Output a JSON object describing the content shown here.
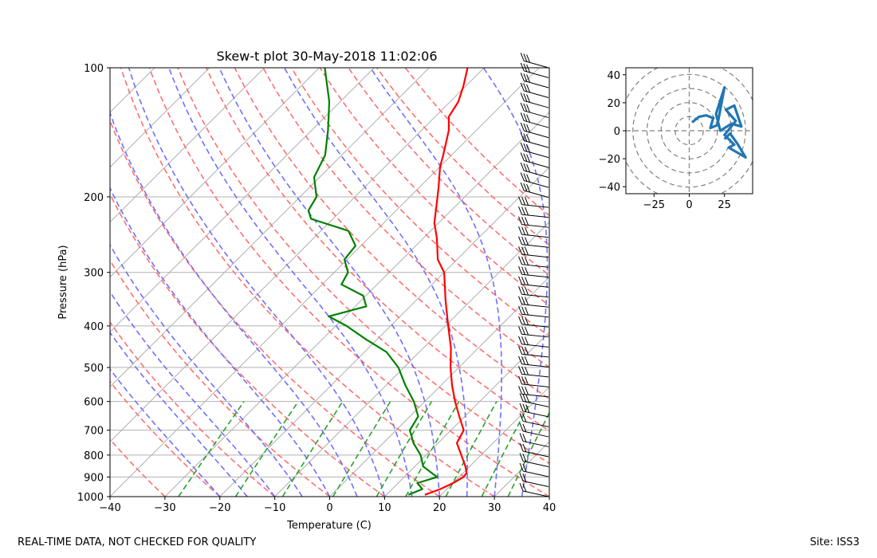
{
  "chart_data": [
    {
      "type": "skew-t",
      "title": "Skew-t plot 30-May-2018 11:02:06",
      "xlabel": "Temperature (C)",
      "ylabel": "Pressure (hPa)",
      "xlim": [
        -40,
        40
      ],
      "ylim_hpa": [
        1000,
        100
      ],
      "y_scale": "log",
      "x_ticks": [
        "−40",
        "−30",
        "−20",
        "−10",
        "0",
        "10",
        "20",
        "30",
        "40"
      ],
      "x_tick_values": [
        -40,
        -30,
        -20,
        -10,
        0,
        10,
        20,
        30,
        40
      ],
      "y_ticks": [
        "100",
        "200",
        "300",
        "400",
        "500",
        "600",
        "700",
        "800",
        "900",
        "1000"
      ],
      "y_tick_values": [
        100,
        200,
        300,
        400,
        500,
        600,
        700,
        800,
        900,
        1000
      ],
      "grid": true,
      "series": [
        {
          "name": "",
          "color": "#ff0000",
          "points": [
            {
              "p": 990,
              "t": 17.0
            },
            {
              "p": 960,
              "t": 18.8
            },
            {
              "p": 930,
              "t": 20.0
            },
            {
              "p": 900,
              "t": 20.8
            },
            {
              "p": 880,
              "t": 20.6
            },
            {
              "p": 850,
              "t": 19.2
            },
            {
              "p": 800,
              "t": 16.4
            },
            {
              "p": 750,
              "t": 13.4
            },
            {
              "p": 700,
              "t": 12.3
            },
            {
              "p": 650,
              "t": 9.0
            },
            {
              "p": 600,
              "t": 5.5
            },
            {
              "p": 550,
              "t": 2.0
            },
            {
              "p": 500,
              "t": -1.5
            },
            {
              "p": 450,
              "t": -5.0
            },
            {
              "p": 400,
              "t": -9.5
            },
            {
              "p": 350,
              "t": -14.5
            },
            {
              "p": 300,
              "t": -20.0
            },
            {
              "p": 280,
              "t": -23.5
            },
            {
              "p": 250,
              "t": -27.5
            },
            {
              "p": 230,
              "t": -30.8
            },
            {
              "p": 210,
              "t": -33.5
            },
            {
              "p": 190,
              "t": -36.5
            },
            {
              "p": 170,
              "t": -40.0
            },
            {
              "p": 160,
              "t": -41.5
            },
            {
              "p": 140,
              "t": -45.0
            },
            {
              "p": 130,
              "t": -47.5
            },
            {
              "p": 120,
              "t": -48.5
            },
            {
              "p": 110,
              "t": -50.5
            },
            {
              "p": 100,
              "t": -53.0
            }
          ]
        },
        {
          "name": "",
          "color": "#008000",
          "points": [
            {
              "p": 990,
              "t": 14.0
            },
            {
              "p": 960,
              "t": 15.5
            },
            {
              "p": 930,
              "t": 13.5
            },
            {
              "p": 900,
              "t": 16.0
            },
            {
              "p": 880,
              "t": 14.2
            },
            {
              "p": 850,
              "t": 11.5
            },
            {
              "p": 800,
              "t": 9.0
            },
            {
              "p": 750,
              "t": 5.5
            },
            {
              "p": 700,
              "t": 2.5
            },
            {
              "p": 650,
              "t": 1.5
            },
            {
              "p": 600,
              "t": -2.0
            },
            {
              "p": 550,
              "t": -6.5
            },
            {
              "p": 500,
              "t": -11.0
            },
            {
              "p": 460,
              "t": -16.0
            },
            {
              "p": 430,
              "t": -22.0
            },
            {
              "p": 400,
              "t": -28.0
            },
            {
              "p": 380,
              "t": -33.0
            },
            {
              "p": 360,
              "t": -28.0
            },
            {
              "p": 340,
              "t": -30.5
            },
            {
              "p": 320,
              "t": -36.5
            },
            {
              "p": 300,
              "t": -37.5
            },
            {
              "p": 280,
              "t": -40.5
            },
            {
              "p": 260,
              "t": -41.0
            },
            {
              "p": 240,
              "t": -45.0
            },
            {
              "p": 225,
              "t": -54.0
            },
            {
              "p": 215,
              "t": -56.0
            },
            {
              "p": 200,
              "t": -57.0
            },
            {
              "p": 180,
              "t": -61.0
            },
            {
              "p": 160,
              "t": -63.0
            },
            {
              "p": 140,
              "t": -67.0
            },
            {
              "p": 120,
              "t": -72.0
            },
            {
              "p": 100,
              "t": -79.0
            }
          ]
        }
      ]
    },
    {
      "type": "hodograph",
      "xlim": [
        -45,
        45
      ],
      "ylim": [
        -45,
        45
      ],
      "x_ticks": [
        "−25",
        "0",
        "25"
      ],
      "x_tick_values": [
        -25,
        0,
        25
      ],
      "y_ticks": [
        "40",
        "20",
        "0",
        "−20",
        "−40"
      ],
      "y_tick_values": [
        40,
        20,
        0,
        -20,
        -40
      ],
      "ring_radii": [
        10,
        20,
        30,
        40,
        50
      ],
      "line_color": "#1f77b4",
      "points": [
        {
          "u": 2,
          "v": 6
        },
        {
          "u": 7,
          "v": 10
        },
        {
          "u": 12,
          "v": 11
        },
        {
          "u": 17,
          "v": 9
        },
        {
          "u": 15,
          "v": 2
        },
        {
          "u": 20,
          "v": 4
        },
        {
          "u": 25,
          "v": 31
        },
        {
          "u": 19,
          "v": 12
        },
        {
          "u": 22,
          "v": 0
        },
        {
          "u": 30,
          "v": 5
        },
        {
          "u": 37,
          "v": 3
        },
        {
          "u": 32,
          "v": 18
        },
        {
          "u": 26,
          "v": 15
        },
        {
          "u": 33,
          "v": 7
        },
        {
          "u": 25,
          "v": -3
        },
        {
          "u": 32,
          "v": -10
        },
        {
          "u": 28,
          "v": -12
        },
        {
          "u": 40,
          "v": -19
        },
        {
          "u": 34,
          "v": -9
        },
        {
          "u": 29,
          "v": -2
        },
        {
          "u": 25,
          "v": -6
        }
      ]
    }
  ],
  "footer": {
    "left": "REAL-TIME DATA, NOT CHECKED FOR QUALITY",
    "right": "Site: ISS3"
  },
  "colors": {
    "temperature": "#ff0000",
    "dewpoint": "#008000",
    "dry_adiabat": "#ff7070",
    "moist_adiabat": "#7070ff",
    "mixing_ratio": "#2ca02c",
    "hodograph": "#1f77b4"
  }
}
